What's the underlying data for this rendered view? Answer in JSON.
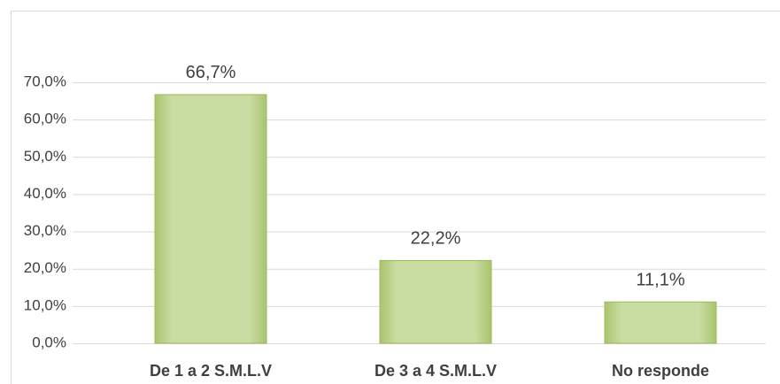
{
  "chart_data": {
    "type": "bar",
    "categories": [
      "De 1 a 2 S.M.L.V",
      "De 3 a 4 S.M.L.V",
      "No responde"
    ],
    "values": [
      66.7,
      22.2,
      11.1
    ],
    "value_labels": [
      "66,7%",
      "22,2%",
      "11,1%"
    ],
    "color": "#c3d69b",
    "ylim": [
      0,
      70
    ],
    "yticks": [
      {
        "value": 0,
        "label": "0,0%"
      },
      {
        "value": 10,
        "label": "10,0%"
      },
      {
        "value": 20,
        "label": "20,0%"
      },
      {
        "value": 30,
        "label": "30,0%"
      },
      {
        "value": 40,
        "label": "40,0%"
      },
      {
        "value": 50,
        "label": "50,0%"
      },
      {
        "value": 60,
        "label": "60,0%"
      },
      {
        "value": 70,
        "label": "70,0%"
      }
    ],
    "grid": true
  }
}
